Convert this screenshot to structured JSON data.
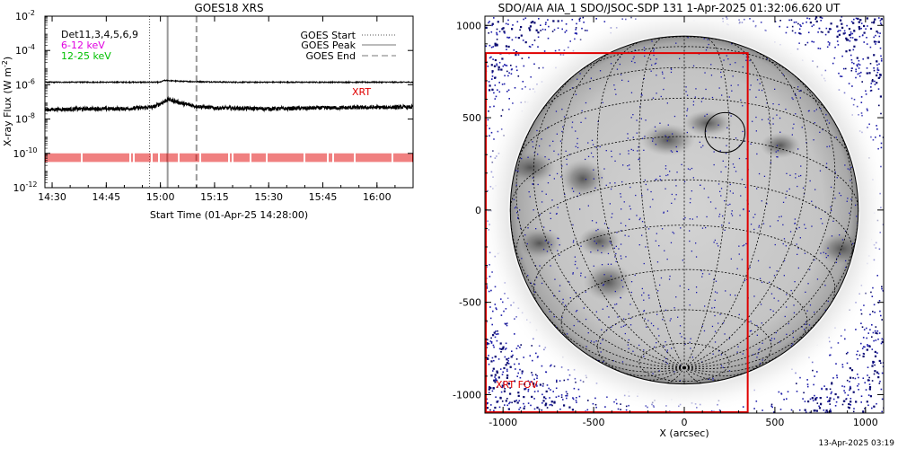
{
  "footer_timestamp": "13-Apr-2025 03:19",
  "chart_data": [
    {
      "type": "line",
      "title": "GOES18 XRS",
      "xlabel": "Start Time (01-Apr-25 14:28:00)",
      "ylabel_main": "X-ray Flux (W m",
      "ylabel_sup": "-2",
      "ylabel_close": ")",
      "y_scale": "log",
      "ylim": [
        1e-12,
        0.01
      ],
      "xlim": [
        "14:28",
        "16:10"
      ],
      "x_ticks": [
        "14:30",
        "14:45",
        "15:00",
        "15:15",
        "15:30",
        "15:45",
        "16:00"
      ],
      "y_ticks": [
        {
          "base": "10",
          "exp": "-2",
          "value": -2
        },
        {
          "base": "10",
          "exp": "-4",
          "value": -4
        },
        {
          "base": "10",
          "exp": "-6",
          "value": -6
        },
        {
          "base": "10",
          "exp": "-8",
          "value": -8
        },
        {
          "base": "10",
          "exp": "-10",
          "value": -10
        },
        {
          "base": "10",
          "exp": "-12",
          "value": -12
        }
      ],
      "channel_labels": [
        {
          "text": "Det11,3,4,5,6,9",
          "color": "#000000"
        },
        {
          "text": "6-12 keV",
          "color": "#e000e0"
        },
        {
          "text": "12-25 keV",
          "color": "#00c000"
        }
      ],
      "legend": [
        "GOES Start",
        "GOES Peak",
        "GOES End"
      ],
      "legend_position": "top-right",
      "annotation": "XRT",
      "annotation_color": "#e00000",
      "goes_start": "14:57",
      "goes_peak": "15:02",
      "goes_end": "15:10",
      "series": [
        {
          "name": "",
          "color": "#000000",
          "x": [
            "14:28",
            "14:45",
            "15:00",
            "15:01",
            "15:02",
            "15:04",
            "15:06",
            "15:10",
            "15:20",
            "15:40",
            "16:10"
          ],
          "log_flux": [
            -5.85,
            -5.85,
            -5.85,
            -5.75,
            -5.75,
            -5.78,
            -5.8,
            -5.82,
            -5.85,
            -5.85,
            -5.85
          ]
        },
        {
          "name": "",
          "color": "#000000",
          "x": [
            "14:28",
            "14:40",
            "14:50",
            "14:58",
            "15:01",
            "15:02",
            "15:04",
            "15:06",
            "15:10",
            "15:15",
            "15:30",
            "15:45",
            "16:10"
          ],
          "log_flux": [
            -7.45,
            -7.4,
            -7.4,
            -7.3,
            -7.0,
            -6.85,
            -6.95,
            -7.1,
            -7.25,
            -7.35,
            -7.4,
            -7.35,
            -7.3
          ]
        }
      ],
      "xrt_band": {
        "log_flux_low": -10.5,
        "log_flux_high": -10.0,
        "color": "#e00000"
      }
    },
    {
      "type": "scatter",
      "title": "SDO/AIA AIA_1 SDO/JSOC-SDP 131  1-Apr-2025 01:32:06.620 UT",
      "xlabel": "X (arcsec)",
      "ylabel": "",
      "xlim": [
        -1100,
        1100
      ],
      "ylim": [
        -1100,
        1050
      ],
      "x_ticks": [
        "-1000",
        "-500",
        "0",
        "500",
        "1000"
      ],
      "y_ticks": [
        "1000",
        "500",
        "0",
        "-500",
        "-1000"
      ],
      "solar_radius_arcsec": 960,
      "xrt_fov": {
        "label": "XRT FOV",
        "x": [
          -1100,
          350
        ],
        "y": [
          -1100,
          850
        ],
        "color": "#e00000"
      },
      "flare_marker": {
        "x": 225,
        "y": 420,
        "radius": 110
      },
      "grid_spacing_deg": 15,
      "dark_regions": [
        {
          "x": -560,
          "y": 170
        },
        {
          "x": -850,
          "y": 230
        },
        {
          "x": -800,
          "y": -180
        },
        {
          "x": -420,
          "y": -390
        },
        {
          "x": -470,
          "y": -170
        },
        {
          "x": 130,
          "y": 470
        },
        {
          "x": -90,
          "y": 380
        },
        {
          "x": 870,
          "y": -210
        },
        {
          "x": 530,
          "y": 350
        }
      ]
    }
  ]
}
